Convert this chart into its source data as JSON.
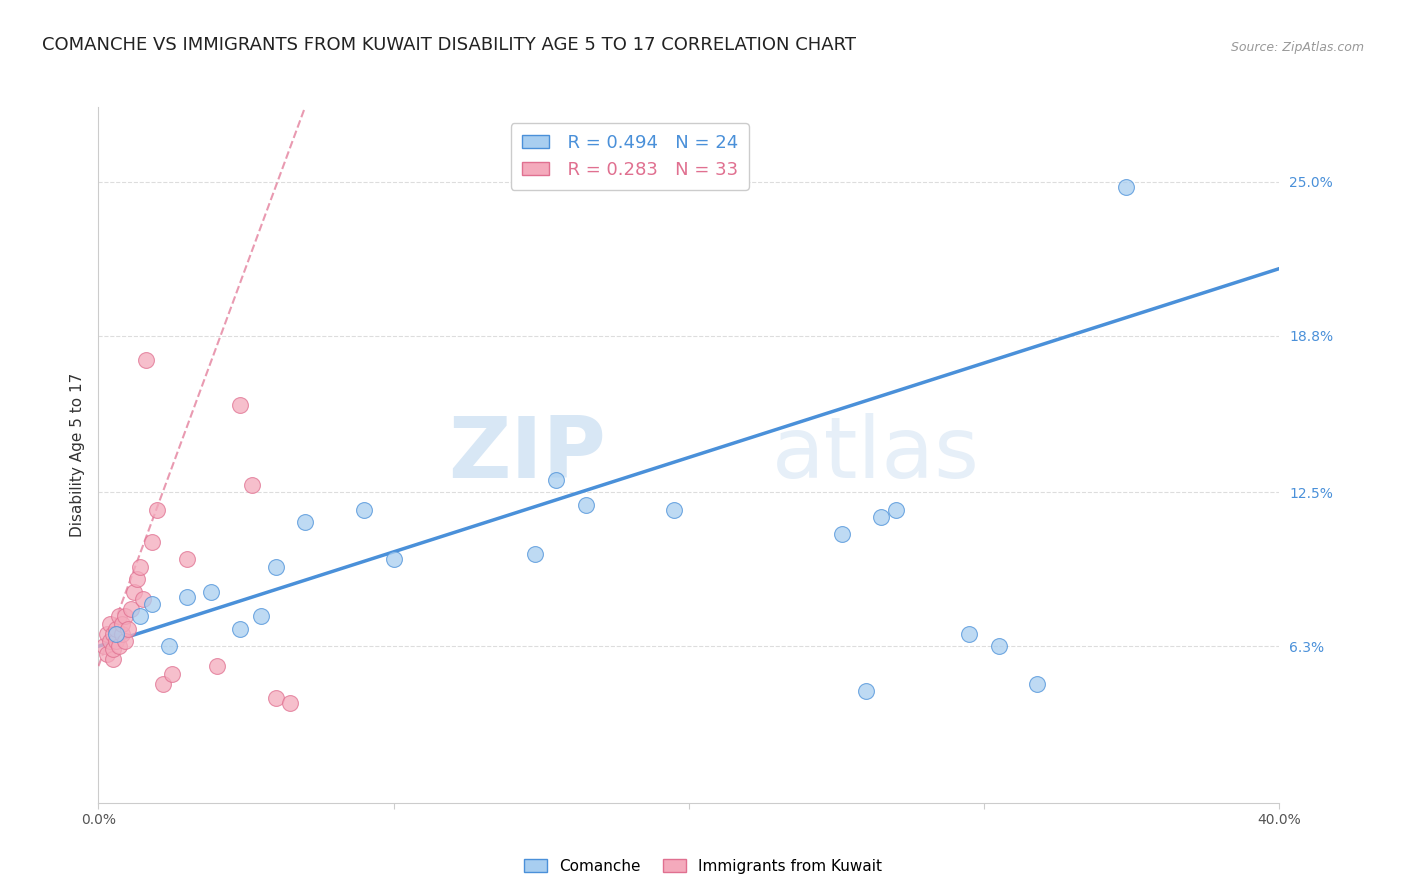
{
  "title": "COMANCHE VS IMMIGRANTS FROM KUWAIT DISABILITY AGE 5 TO 17 CORRELATION CHART",
  "source": "Source: ZipAtlas.com",
  "ylabel": "Disability Age 5 to 17",
  "xlim": [
    0.0,
    0.4
  ],
  "ylim": [
    0.0,
    0.28
  ],
  "x_tick_positions": [
    0.0,
    0.1,
    0.2,
    0.3,
    0.4
  ],
  "x_tick_labels": [
    "0.0%",
    "",
    "",
    "",
    "40.0%"
  ],
  "y_tick_labels_right": [
    "25.0%",
    "18.8%",
    "12.5%",
    "6.3%"
  ],
  "y_tick_positions_right": [
    0.25,
    0.188,
    0.125,
    0.063
  ],
  "legend_blue_r": "R = 0.494",
  "legend_blue_n": "N = 24",
  "legend_pink_r": "R = 0.283",
  "legend_pink_n": "N = 33",
  "legend_label_blue": "Comanche",
  "legend_label_pink": "Immigrants from Kuwait",
  "color_blue_fill": "#A8CEF0",
  "color_pink_fill": "#F4AABC",
  "color_blue_line": "#4A90D9",
  "color_pink_line": "#E07090",
  "watermark_zip": "ZIP",
  "watermark_atlas": "atlas",
  "blue_line_x0": 0.0,
  "blue_line_y0": 0.063,
  "blue_line_x1": 0.4,
  "blue_line_y1": 0.215,
  "pink_line_x0": 0.0,
  "pink_line_y0": 0.055,
  "pink_line_x1": 0.07,
  "pink_line_y1": 0.28,
  "blue_scatter_x": [
    0.006,
    0.014,
    0.018,
    0.024,
    0.03,
    0.038,
    0.048,
    0.055,
    0.06,
    0.07,
    0.09,
    0.1,
    0.148,
    0.155,
    0.165,
    0.195,
    0.252,
    0.26,
    0.265,
    0.27,
    0.295,
    0.305,
    0.318,
    0.348
  ],
  "blue_scatter_y": [
    0.068,
    0.075,
    0.08,
    0.063,
    0.083,
    0.085,
    0.07,
    0.075,
    0.095,
    0.113,
    0.118,
    0.098,
    0.1,
    0.13,
    0.12,
    0.118,
    0.108,
    0.045,
    0.115,
    0.118,
    0.068,
    0.063,
    0.048,
    0.248
  ],
  "pink_scatter_x": [
    0.002,
    0.003,
    0.003,
    0.004,
    0.004,
    0.005,
    0.005,
    0.005,
    0.006,
    0.006,
    0.007,
    0.007,
    0.008,
    0.008,
    0.009,
    0.009,
    0.01,
    0.011,
    0.012,
    0.013,
    0.014,
    0.015,
    0.016,
    0.018,
    0.02,
    0.022,
    0.025,
    0.03,
    0.04,
    0.048,
    0.052,
    0.06,
    0.065
  ],
  "pink_scatter_y": [
    0.063,
    0.06,
    0.068,
    0.065,
    0.072,
    0.058,
    0.062,
    0.068,
    0.065,
    0.07,
    0.063,
    0.075,
    0.068,
    0.072,
    0.075,
    0.065,
    0.07,
    0.078,
    0.085,
    0.09,
    0.095,
    0.082,
    0.178,
    0.105,
    0.118,
    0.048,
    0.052,
    0.098,
    0.055,
    0.16,
    0.128,
    0.042,
    0.04
  ],
  "grid_color": "#DDDDDD",
  "background_color": "#FFFFFF",
  "title_fontsize": 13,
  "axis_label_fontsize": 11,
  "tick_fontsize": 10,
  "legend_fontsize": 13
}
